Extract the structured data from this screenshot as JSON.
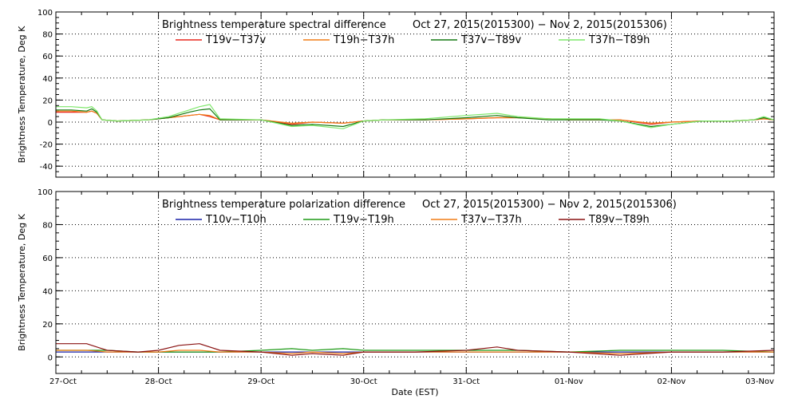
{
  "chart_data": [
    {
      "type": "line",
      "title": "Brightness temperature spectral difference",
      "date_range": "Oct 27, 2015(2015300) − Nov  2, 2015(2015306)",
      "ylabel": "Brightness Temperature, Deg K",
      "xlabel": "",
      "ylim": [
        -50,
        100
      ],
      "yticks": [
        -40,
        -20,
        0,
        20,
        40,
        60,
        80,
        100
      ],
      "xlim": [
        0,
        7
      ],
      "x_tick_labels": [
        "27-Oct",
        "28-Oct",
        "29-Oct",
        "30-Oct",
        "31-Oct",
        "01-Nov",
        "02-Nov",
        "03-Nov"
      ],
      "grid": true,
      "legend_position": "top",
      "series": [
        {
          "name": "T19v−T37v",
          "color": "#e8261d",
          "x": [
            0,
            0.15,
            0.3,
            0.35,
            0.4,
            0.45,
            0.6,
            0.9,
            1.1,
            1.3,
            1.4,
            1.5,
            1.6,
            2.0,
            2.3,
            2.5,
            2.8,
            3.0,
            3.2,
            3.6,
            4.0,
            4.3,
            4.5,
            4.8,
            5.0,
            5.3,
            5.5,
            5.8,
            6.0,
            6.3,
            6.6,
            6.8,
            6.9,
            7.0
          ],
          "y": [
            9,
            9,
            9,
            10,
            8,
            2,
            1,
            2,
            4,
            6,
            7,
            5,
            2,
            2,
            -2,
            0,
            -1,
            1,
            2,
            2,
            3,
            4,
            4,
            3,
            2,
            2,
            2,
            -2,
            0,
            1,
            1,
            2,
            3,
            2
          ]
        },
        {
          "name": "T19h−T37h",
          "color": "#f07d17",
          "x": [
            0,
            0.15,
            0.3,
            0.35,
            0.4,
            0.45,
            0.6,
            0.9,
            1.1,
            1.3,
            1.4,
            1.5,
            1.6,
            2.0,
            2.3,
            2.5,
            2.8,
            3.0,
            3.2,
            3.6,
            4.0,
            4.3,
            4.5,
            4.8,
            5.0,
            5.3,
            5.5,
            5.8,
            6.0,
            6.3,
            6.6,
            6.8,
            6.9,
            7.0
          ],
          "y": [
            10,
            10,
            9,
            10,
            8,
            2,
            1,
            2,
            4,
            6,
            7,
            6,
            2,
            2,
            -1,
            0,
            -1,
            1,
            2,
            2,
            3,
            4,
            4,
            3,
            2,
            2,
            2,
            -1,
            0,
            1,
            1,
            2,
            3,
            2
          ]
        },
        {
          "name": "T37v−T89v",
          "color": "#157a12",
          "x": [
            0,
            0.15,
            0.3,
            0.35,
            0.4,
            0.45,
            0.6,
            0.9,
            1.1,
            1.3,
            1.4,
            1.5,
            1.6,
            2.0,
            2.3,
            2.5,
            2.8,
            3.0,
            3.2,
            3.6,
            4.0,
            4.3,
            4.5,
            4.8,
            5.0,
            5.3,
            5.5,
            5.8,
            6.0,
            6.3,
            6.6,
            6.8,
            6.9,
            7.0
          ],
          "y": [
            11,
            11,
            10,
            12,
            9,
            2,
            1,
            2,
            4,
            9,
            11,
            12,
            2,
            2,
            -3,
            -2,
            -4,
            1,
            2,
            2,
            4,
            6,
            4,
            2,
            2,
            2,
            1,
            -4,
            -2,
            1,
            1,
            2,
            4,
            2
          ]
        },
        {
          "name": "T37h−T89h",
          "color": "#7ee86b",
          "x": [
            0,
            0.15,
            0.3,
            0.35,
            0.4,
            0.45,
            0.6,
            0.9,
            1.1,
            1.3,
            1.4,
            1.5,
            1.6,
            2.0,
            2.3,
            2.5,
            2.8,
            3.0,
            3.2,
            3.6,
            4.0,
            4.3,
            4.5,
            4.8,
            5.0,
            5.3,
            5.5,
            5.8,
            6.0,
            6.3,
            6.6,
            6.8,
            6.9,
            7.0
          ],
          "y": [
            14,
            14,
            13,
            14,
            10,
            2,
            1,
            2,
            5,
            11,
            14,
            16,
            3,
            2,
            -4,
            -3,
            -6,
            1,
            2,
            3,
            6,
            8,
            5,
            3,
            3,
            3,
            1,
            -5,
            -2,
            1,
            1,
            2,
            5,
            2
          ]
        }
      ]
    },
    {
      "type": "line",
      "title": "Brightness temperature polarization difference",
      "date_range": "Oct 27, 2015(2015300) − Nov  2, 2015(2015306)",
      "ylabel": "Brightness Temperature, Deg K",
      "xlabel": "Date (EST)",
      "ylim": [
        -10,
        100
      ],
      "yticks": [
        0,
        20,
        40,
        60,
        80,
        100
      ],
      "xlim": [
        0,
        7
      ],
      "x_tick_labels": [
        "27-Oct",
        "28-Oct",
        "29-Oct",
        "30-Oct",
        "31-Oct",
        "01-Nov",
        "02-Nov",
        "03-Nov"
      ],
      "grid": true,
      "legend_position": "top",
      "series": [
        {
          "name": "T10v−T10h",
          "color": "#1a22a8",
          "x": [
            0,
            0.3,
            0.5,
            0.8,
            1.0,
            1.2,
            1.4,
            1.6,
            2.0,
            2.3,
            2.5,
            2.8,
            3.0,
            3.5,
            4.0,
            4.3,
            4.5,
            5.0,
            5.5,
            6.0,
            6.5,
            7.0
          ],
          "y": [
            3,
            3,
            3,
            3,
            3,
            3,
            3,
            3,
            3,
            3,
            3,
            3,
            3,
            3,
            3,
            3,
            3,
            3,
            3,
            3,
            3,
            3
          ]
        },
        {
          "name": "T19v−T19h",
          "color": "#1e9a16",
          "x": [
            0,
            0.3,
            0.5,
            0.8,
            1.0,
            1.2,
            1.4,
            1.6,
            2.0,
            2.3,
            2.5,
            2.8,
            3.0,
            3.5,
            4.0,
            4.3,
            4.5,
            5.0,
            5.5,
            6.0,
            6.5,
            7.0
          ],
          "y": [
            4,
            4,
            4,
            3,
            3,
            3,
            3,
            3,
            4,
            5,
            4,
            5,
            4,
            4,
            4,
            4,
            4,
            3,
            4,
            4,
            4,
            3
          ]
        },
        {
          "name": "T37v−T37h",
          "color": "#f07d17",
          "x": [
            0,
            0.3,
            0.5,
            0.8,
            1.0,
            1.2,
            1.4,
            1.6,
            2.0,
            2.3,
            2.5,
            2.8,
            3.0,
            3.5,
            4.0,
            4.3,
            4.5,
            5.0,
            5.5,
            6.0,
            6.5,
            7.0
          ],
          "y": [
            4,
            4,
            3,
            3,
            3,
            4,
            4,
            3,
            3,
            2,
            3,
            2,
            3,
            3,
            3,
            3,
            3,
            3,
            2,
            3,
            3,
            3
          ]
        },
        {
          "name": "T89v−T89h",
          "color": "#8a1212",
          "x": [
            0,
            0.3,
            0.5,
            0.8,
            1.0,
            1.2,
            1.4,
            1.6,
            2.0,
            2.3,
            2.5,
            2.8,
            3.0,
            3.5,
            4.0,
            4.3,
            4.5,
            5.0,
            5.5,
            6.0,
            6.5,
            7.0
          ],
          "y": [
            8,
            8,
            4,
            3,
            4,
            7,
            8,
            4,
            3,
            1,
            2,
            1,
            3,
            3,
            4,
            6,
            4,
            3,
            1,
            3,
            3,
            4
          ]
        }
      ]
    }
  ]
}
